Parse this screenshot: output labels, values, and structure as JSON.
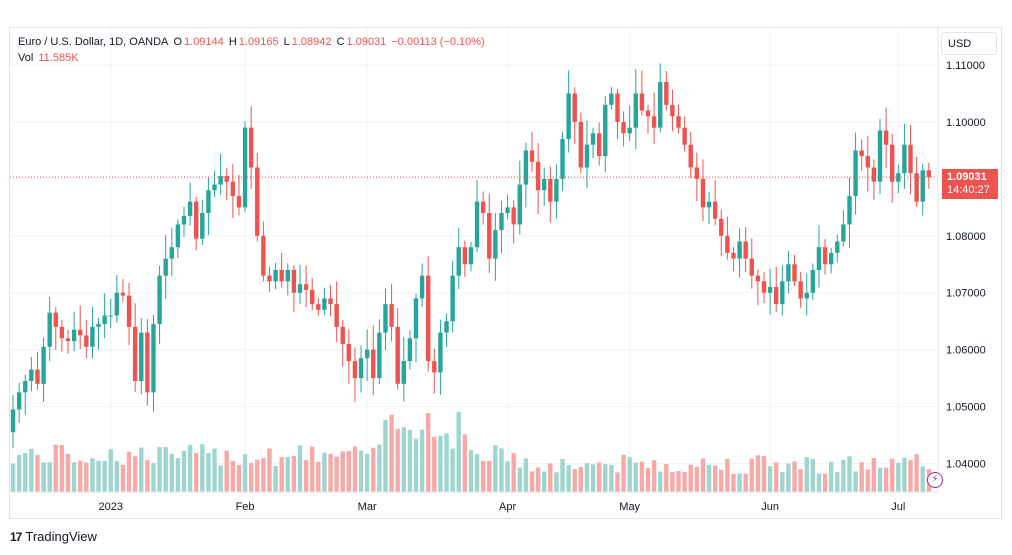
{
  "legend": {
    "symbol": "Euro / U.S. Dollar, 1D, OANDA",
    "o_label": "O",
    "o_value": "1.09144",
    "h_label": "H",
    "h_value": "1.09165",
    "l_label": "L",
    "l_value": "1.08942",
    "c_label": "C",
    "c_value": "1.09031",
    "change": "−0.00113 (−0.10%)",
    "vol_label": "Vol",
    "vol_value": "11.585K"
  },
  "currency": "USD",
  "price_tag": {
    "price": "1.09031",
    "countdown": "14:40:27"
  },
  "brand": "TradingView",
  "colors": {
    "up": "#26a69a",
    "down": "#ef5350",
    "vol_up": "#9fd5cf",
    "vol_down": "#f7a9a7",
    "grid": "#f0f3fa"
  },
  "chart_data": {
    "type": "candlestick",
    "ylim": [
      1.035,
      1.1165
    ],
    "current_price": 1.09031,
    "y_ticks": [
      "1.11000",
      "1.10000",
      "1.09000",
      "1.08000",
      "1.07000",
      "1.06000",
      "1.05000",
      "1.04000"
    ],
    "y_tick_values": [
      1.11,
      1.1,
      1.09,
      1.08,
      1.07,
      1.06,
      1.05,
      1.04
    ],
    "x_ticks": [
      {
        "label": "2023",
        "index": 16
      },
      {
        "label": "Feb",
        "index": 38
      },
      {
        "label": "Mar",
        "index": 58
      },
      {
        "label": "Apr",
        "index": 81
      },
      {
        "label": "May",
        "index": 101
      },
      {
        "label": "Jun",
        "index": 124
      },
      {
        "label": "Jul",
        "index": 145
      }
    ],
    "closes": [
      1.0495,
      1.0525,
      1.0545,
      1.0565,
      1.054,
      1.0605,
      1.0665,
      1.064,
      1.062,
      1.0615,
      1.0635,
      1.0625,
      1.0605,
      1.064,
      1.0645,
      1.066,
      1.066,
      1.07,
      1.0695,
      1.064,
      1.0545,
      1.063,
      1.0525,
      1.0645,
      1.073,
      1.076,
      1.078,
      1.082,
      1.0835,
      1.086,
      1.0795,
      1.084,
      1.088,
      1.089,
      1.0905,
      1.0895,
      1.087,
      1.085,
      1.099,
      1.092,
      1.08,
      1.073,
      1.072,
      1.074,
      1.072,
      1.074,
      1.07,
      1.0715,
      1.0705,
      1.068,
      1.067,
      1.069,
      1.068,
      1.064,
      1.061,
      1.058,
      1.055,
      1.0585,
      1.06,
      1.055,
      1.063,
      1.068,
      1.064,
      1.054,
      1.058,
      1.062,
      1.069,
      1.073,
      1.058,
      1.056,
      1.063,
      1.065,
      1.073,
      1.078,
      1.075,
      1.078,
      1.086,
      1.084,
      1.076,
      1.081,
      1.084,
      1.085,
      1.082,
      1.089,
      1.095,
      1.093,
      1.088,
      1.09,
      1.086,
      1.09,
      1.097,
      1.105,
      1.1,
      1.092,
      1.096,
      1.098,
      1.094,
      1.103,
      1.105,
      1.1,
      1.098,
      1.099,
      1.105,
      1.102,
      1.101,
      1.099,
      1.107,
      1.103,
      1.101,
      1.099,
      1.096,
      1.092,
      1.09,
      1.085,
      1.086,
      1.083,
      1.08,
      1.077,
      1.076,
      1.079,
      1.076,
      1.073,
      1.072,
      1.07,
      1.071,
      1.068,
      1.072,
      1.075,
      1.072,
      1.069,
      1.07,
      1.074,
      1.078,
      1.075,
      1.077,
      1.079,
      1.082,
      1.087,
      1.095,
      1.094,
      1.092,
      1.0895,
      1.0985,
      1.096,
      1.0895,
      1.091,
      1.096,
      1.091,
      1.086,
      1.0915,
      1.0903
    ]
  }
}
